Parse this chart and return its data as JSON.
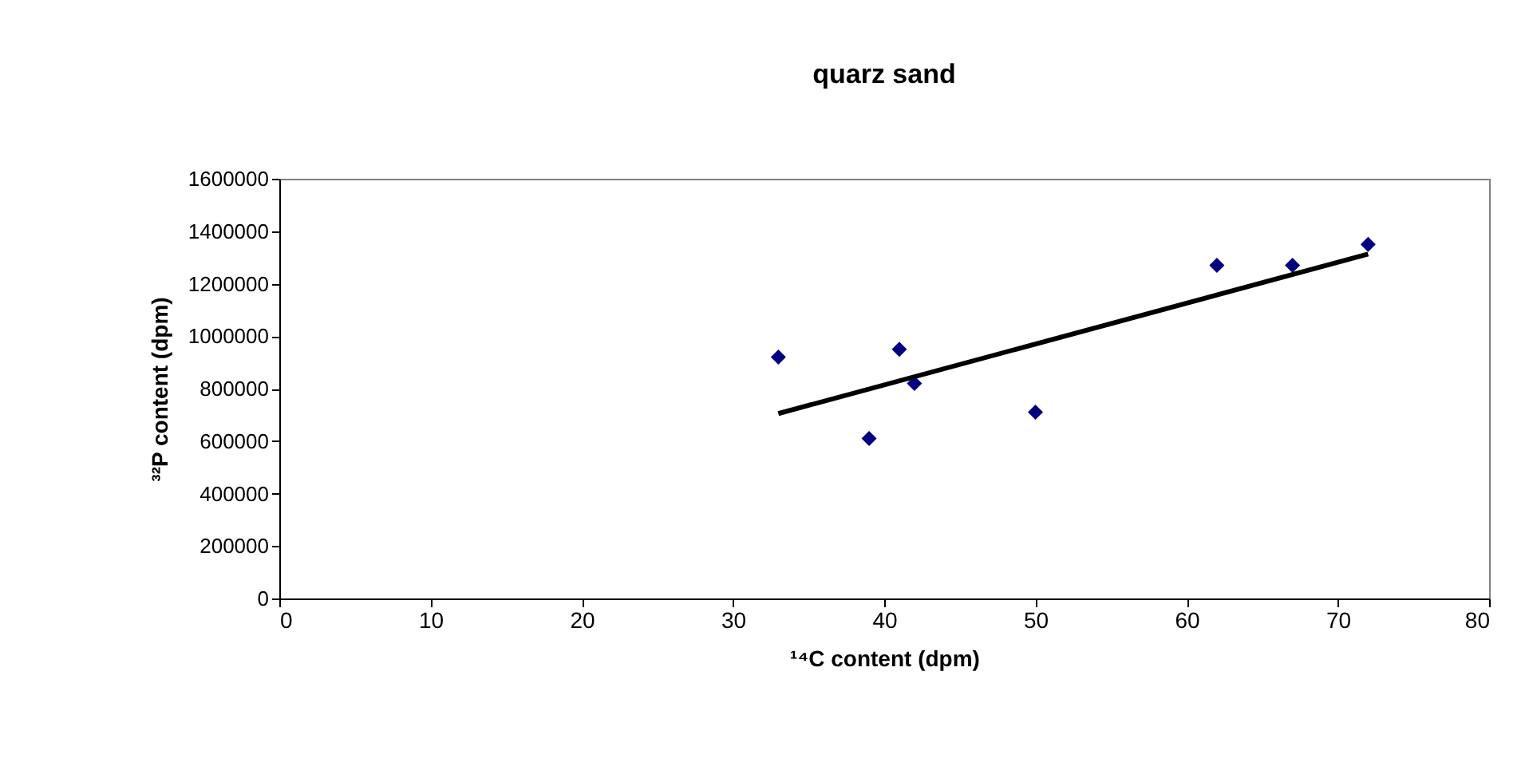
{
  "chart_data": {
    "type": "scatter",
    "title": "quarz sand",
    "xlabel": "¹⁴C content (dpm)",
    "ylabel": "³²P content (dpm)",
    "x": [
      33,
      39,
      41,
      42,
      50,
      62,
      67,
      72
    ],
    "series": [
      {
        "color": "#000080",
        "marker": "diamond",
        "values": [
          920000,
          610000,
          950000,
          820000,
          710000,
          1270000,
          1270000,
          1350000
        ]
      },
      {
        "type": "line",
        "color": "#000000",
        "x": [
          33,
          72
        ],
        "values": [
          705000,
          1313000
        ]
      }
    ],
    "xlim": [
      0,
      80
    ],
    "xticks": [
      0,
      10,
      20,
      30,
      40,
      50,
      60,
      70,
      80
    ],
    "ylim": [
      0,
      1600000
    ],
    "yticks": [
      0,
      200000,
      400000,
      600000,
      800000,
      1000000,
      1200000,
      1400000,
      1600000
    ],
    "grid": false,
    "legend": false,
    "line_style": "solid"
  }
}
